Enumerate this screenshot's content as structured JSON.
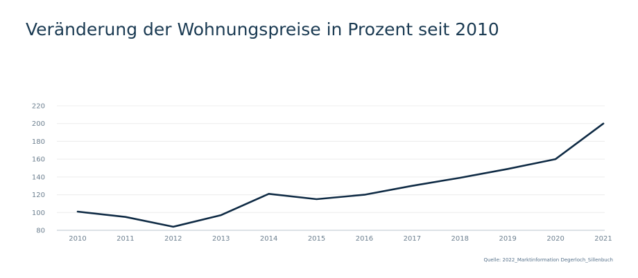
{
  "title": "Veränderung der Wohnungspreise in Prozent seit 2010",
  "source": "Quelle: 2022_Marktinformation Degerloch_Sillenbuch",
  "colors": {
    "line": "#0e2a44",
    "grid": "#ececec",
    "axis": "#b8c4cc"
  },
  "chart_data": {
    "type": "line",
    "title": "Veränderung der Wohnungspreise in Prozent seit 2010",
    "xlabel": "",
    "ylabel": "",
    "categories": [
      "2010",
      "2011",
      "2012",
      "2013",
      "2014",
      "2015",
      "2016",
      "2017",
      "2018",
      "2019",
      "2020",
      "2021"
    ],
    "values": [
      101,
      95,
      84,
      97,
      121,
      115,
      120,
      130,
      139,
      149,
      160,
      200
    ],
    "ylim": [
      80,
      220
    ],
    "yticks": [
      80,
      100,
      120,
      140,
      160,
      180,
      200,
      220
    ],
    "grid": true
  }
}
